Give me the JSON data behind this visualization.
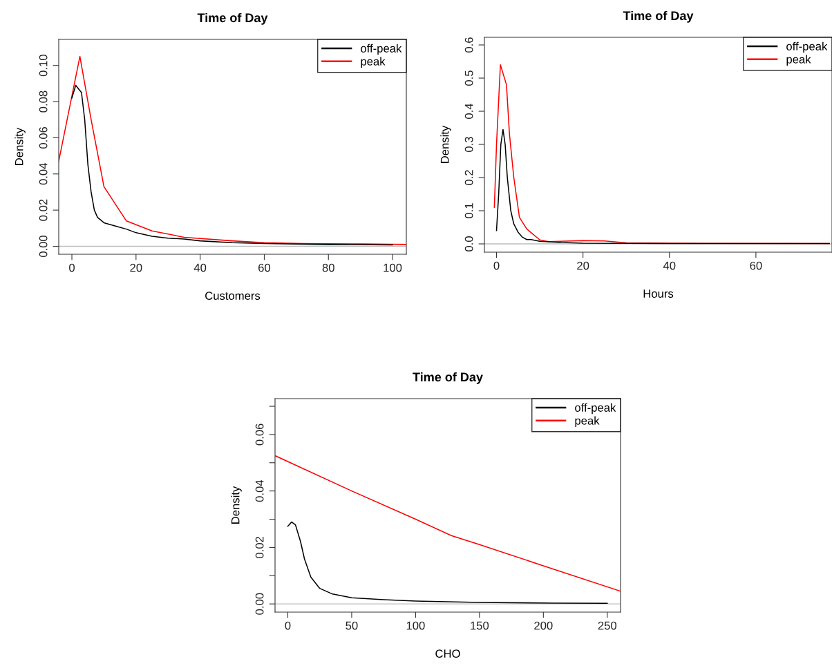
{
  "chart_data": [
    {
      "type": "line",
      "title": "Time of Day",
      "xlabel": "Customers",
      "ylabel": "Density",
      "xlim": [
        -4.1,
        104.3
      ],
      "ylim": [
        -0.0044,
        0.1144
      ],
      "xticks": [
        0,
        20,
        40,
        60,
        80,
        100
      ],
      "yticks": [
        {
          "value": 0,
          "label": "0.00"
        },
        {
          "value": 0.02,
          "label": "0.02"
        },
        {
          "value": 0.04,
          "label": "0.04"
        },
        {
          "value": 0.06,
          "label": "0.06"
        },
        {
          "value": 0.08,
          "label": "0.08"
        },
        {
          "value": 0.1,
          "label": "0.10"
        }
      ],
      "grid": false,
      "legend": "top right",
      "ref_lines": [
        {
          "axis": "y",
          "value": 0,
          "color": "#bebebe"
        }
      ],
      "series": [
        {
          "name": "off-peak",
          "color": "#000000",
          "x": [
            0,
            1.2,
            3,
            4,
            5,
            6,
            7,
            8,
            10,
            14,
            17,
            20,
            25,
            30,
            35,
            40,
            50,
            60,
            70,
            80,
            100
          ],
          "values": [
            0.082,
            0.089,
            0.085,
            0.07,
            0.045,
            0.03,
            0.02,
            0.016,
            0.013,
            0.011,
            0.0095,
            0.0075,
            0.0055,
            0.0045,
            0.004,
            0.003,
            0.002,
            0.0015,
            0.0012,
            0.001,
            0.0008
          ]
        },
        {
          "name": "peak",
          "color": "#ff0000",
          "x": [
            -4.1,
            2.5,
            6,
            10,
            17,
            25,
            35,
            50,
            60,
            72,
            90,
            104.3
          ],
          "values": [
            0.047,
            0.105,
            0.07,
            0.033,
            0.014,
            0.0085,
            0.005,
            0.003,
            0.002,
            0.0015,
            0.0013,
            0.001
          ]
        }
      ]
    },
    {
      "type": "line",
      "title": "Time of Day",
      "xlabel": "Hours",
      "ylabel": "Density",
      "xlim": [
        -2.8,
        77.6
      ],
      "ylim": [
        -0.025,
        0.623
      ],
      "xticks": [
        0,
        20,
        40,
        60
      ],
      "yticks": [
        {
          "value": 0,
          "label": "0.0"
        },
        0.1,
        0.2,
        0.3,
        0.4,
        0.5,
        0.6
      ],
      "grid": false,
      "legend": "top right",
      "ref_lines": [
        {
          "axis": "y",
          "value": 0,
          "color": "#bebebe"
        }
      ],
      "series": [
        {
          "name": "off-peak",
          "color": "#000000",
          "x": [
            0,
            0.5,
            1,
            1.5,
            2,
            2.5,
            3.3,
            4,
            5,
            6,
            7,
            8,
            10,
            15,
            20,
            40,
            77
          ],
          "values": [
            0.04,
            0.15,
            0.3,
            0.345,
            0.3,
            0.2,
            0.1,
            0.06,
            0.035,
            0.02,
            0.013,
            0.013,
            0.008,
            0.004,
            0.002,
            0.001,
            0.001
          ]
        },
        {
          "name": "peak",
          "color": "#ff0000",
          "x": [
            -0.5,
            0,
            0.9,
            2.3,
            3,
            4,
            5.3,
            7,
            10,
            12,
            20,
            25,
            30,
            40,
            77
          ],
          "values": [
            0.11,
            0.3,
            0.54,
            0.48,
            0.33,
            0.2,
            0.08,
            0.045,
            0.012,
            0.007,
            0.01,
            0.009,
            0.003,
            0.002,
            0.001
          ]
        }
      ]
    },
    {
      "type": "line",
      "title": "Time of Day",
      "xlabel": "CHO",
      "ylabel": "Density",
      "xlim": [
        -10,
        260.4
      ],
      "ylim": [
        -0.0029,
        0.0727
      ],
      "xticks": [
        0,
        50,
        100,
        150,
        200,
        250
      ],
      "yticks": [
        {
          "value": 0,
          "label": "0.00"
        },
        {
          "value": 0.01,
          "label": null
        },
        {
          "value": 0.02,
          "label": "0.02"
        },
        {
          "value": 0.03,
          "label": null
        },
        {
          "value": 0.04,
          "label": "0.04"
        },
        {
          "value": 0.05,
          "label": null
        },
        {
          "value": 0.06,
          "label": "0.06"
        },
        {
          "value": 0.07,
          "label": null
        }
      ],
      "grid": false,
      "legend": "top right",
      "ref_lines": [
        {
          "axis": "y",
          "value": 0,
          "color": "#bebebe"
        }
      ],
      "series": [
        {
          "name": "off-peak",
          "color": "#000000",
          "x": [
            0,
            3,
            6,
            10,
            13,
            18,
            25,
            35,
            50,
            75,
            100,
            150,
            208,
            250
          ],
          "values": [
            0.0275,
            0.029,
            0.028,
            0.022,
            0.016,
            0.0095,
            0.0055,
            0.0035,
            0.0022,
            0.0015,
            0.001,
            0.0005,
            0.0003,
            0.0002
          ]
        },
        {
          "name": "peak",
          "color": "#ff0000",
          "x": [
            -10,
            50,
            100,
            128,
            150,
            200,
            260.4
          ],
          "values": [
            0.0525,
            0.04,
            0.03,
            0.0242,
            0.021,
            0.0135,
            0.0045
          ]
        }
      ]
    }
  ]
}
